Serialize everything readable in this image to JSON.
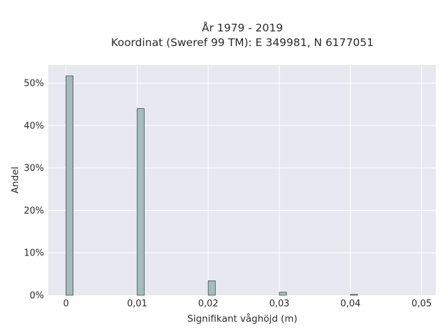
{
  "chart_data": {
    "type": "bar",
    "title_lines": [
      "År 1979 - 2019",
      "Koordinat (Sweref 99 TM): E 349981, N 6177051"
    ],
    "xlabel": "Signifikant våghöjd (m)",
    "ylabel": "Andel",
    "x_ticks": [
      0,
      0.01,
      0.02,
      0.03,
      0.04,
      0.05
    ],
    "x_tick_labels": [
      "0",
      "0,01",
      "0,02",
      "0,03",
      "0,04",
      "0,05"
    ],
    "y_ticks": [
      0,
      0.1,
      0.2,
      0.3,
      0.4,
      0.5
    ],
    "y_tick_labels": [
      "0%",
      "10%",
      "20%",
      "30%",
      "40%",
      "50%"
    ],
    "xlim": [
      -0.0025,
      0.052
    ],
    "ylim": [
      0,
      0.543
    ],
    "bar_width": 0.001,
    "x": [
      0,
      0.01,
      0.02,
      0.03,
      0.04
    ],
    "values": [
      0.517,
      0.44,
      0.034,
      0.007,
      0.002
    ],
    "grid": true,
    "colors": {
      "plot_bg": "#e8e8f0",
      "grid": "#ffffff",
      "bar_fill": "#a3bcbc",
      "bar_edge": "#3d4d4d",
      "text": "#2b2b2b"
    }
  }
}
